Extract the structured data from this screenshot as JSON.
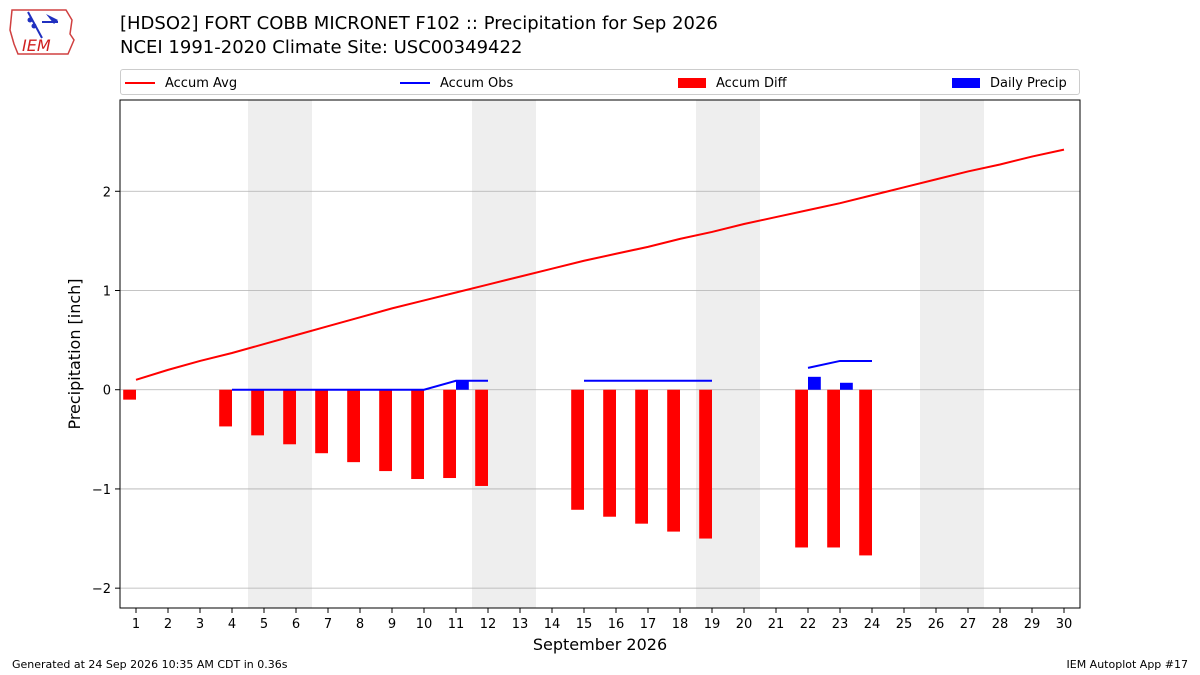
{
  "header": {
    "title_line1": "[HDSO2] FORT COBB MICRONET F102 :: Precipitation for Sep 2026",
    "title_line2": "NCEI 1991-2020 Climate Site: USC00349422"
  },
  "logo": {
    "text": "IEM",
    "icon": "iem-iowa-logo"
  },
  "footer": {
    "left": "Generated at 24 Sep 2026 10:35 AM CDT in 0.36s",
    "right": "IEM Autoplot App #17"
  },
  "colors": {
    "avg": "#ff0000",
    "obs": "#0000ff",
    "diff": "#ff0000",
    "daily": "#0000ff",
    "weekend": "#eeeeee",
    "grid": "#b0b0b0"
  },
  "chart_data": {
    "type": "bar",
    "xlabel": "September 2026",
    "ylabel": "Precipitation [inch]",
    "xlim": [
      0.5,
      30.5
    ],
    "ylim": [
      -2.2,
      2.92
    ],
    "yticks": [
      -2,
      -1,
      0,
      1,
      2
    ],
    "ytick_labels": [
      "−2",
      "−1",
      "0",
      "1",
      "2"
    ],
    "xticks": [
      1,
      2,
      3,
      4,
      5,
      6,
      7,
      8,
      9,
      10,
      11,
      12,
      13,
      14,
      15,
      16,
      17,
      18,
      19,
      20,
      21,
      22,
      23,
      24,
      25,
      26,
      27,
      28,
      29,
      30
    ],
    "grid": "horizontal",
    "legend_placement": "top",
    "legend": [
      "Accum Avg",
      "Accum Obs",
      "Accum Diff",
      "Daily Precip"
    ],
    "weekend_spans": [
      [
        4.5,
        6.5
      ],
      [
        11.5,
        13.5
      ],
      [
        18.5,
        20.5
      ],
      [
        25.5,
        27.5
      ]
    ],
    "accum_avg": {
      "name": "Accum Avg",
      "x": [
        1,
        2,
        3,
        4,
        5,
        6,
        7,
        8,
        9,
        10,
        11,
        12,
        13,
        14,
        15,
        16,
        17,
        18,
        19,
        20,
        21,
        22,
        23,
        24,
        25,
        26,
        27,
        28,
        29,
        30
      ],
      "y": [
        0.1,
        0.2,
        0.29,
        0.37,
        0.46,
        0.55,
        0.64,
        0.73,
        0.82,
        0.9,
        0.98,
        1.06,
        1.14,
        1.22,
        1.3,
        1.37,
        1.44,
        1.52,
        1.59,
        1.67,
        1.74,
        1.81,
        1.88,
        1.96,
        2.04,
        2.12,
        2.2,
        2.27,
        2.35,
        2.42
      ]
    },
    "accum_obs": {
      "name": "Accum Obs",
      "segments": [
        {
          "x": [
            4,
            5,
            6,
            7,
            8,
            9,
            10,
            11,
            12
          ],
          "y": [
            0,
            0,
            0,
            0,
            0,
            0,
            0,
            0.09,
            0.09
          ]
        },
        {
          "x": [
            15,
            16,
            17,
            18,
            19
          ],
          "y": [
            0.09,
            0.09,
            0.09,
            0.09,
            0.09
          ]
        },
        {
          "x": [
            22,
            23,
            24
          ],
          "y": [
            0.22,
            0.29,
            0.29
          ]
        }
      ]
    },
    "accum_diff": {
      "name": "Accum Diff",
      "x": [
        1,
        4,
        5,
        6,
        7,
        8,
        9,
        10,
        11,
        12,
        15,
        16,
        17,
        18,
        19,
        22,
        23,
        24
      ],
      "y": [
        -0.1,
        -0.37,
        -0.46,
        -0.55,
        -0.64,
        -0.73,
        -0.82,
        -0.9,
        -0.89,
        -0.97,
        -1.21,
        -1.28,
        -1.35,
        -1.43,
        -1.5,
        -1.59,
        -1.59,
        -1.67
      ]
    },
    "daily_precip": {
      "name": "Daily Precip",
      "x": [
        11,
        22,
        23
      ],
      "y": [
        0.09,
        0.13,
        0.07
      ]
    }
  }
}
